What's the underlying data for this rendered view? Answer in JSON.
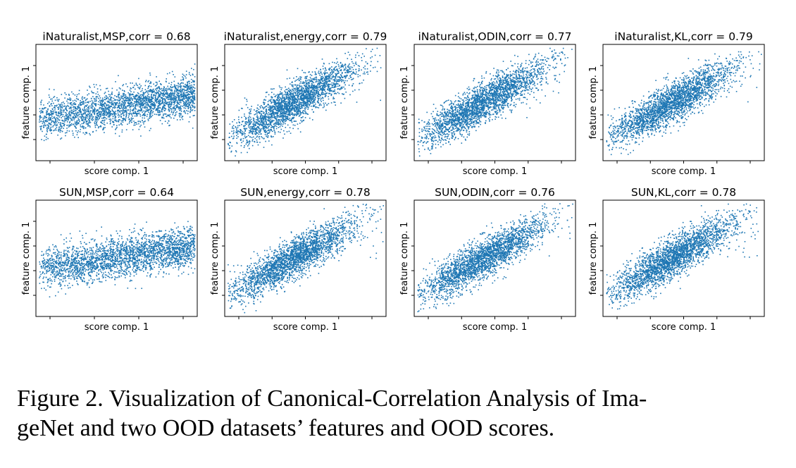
{
  "figure": {
    "caption": "Figure 2. Visualization of Canonical-Correlation Analysis of ImageNet and two OOD datasets’ features and OOD scores.",
    "caption_line1": "Figure 2. Visualization of Canonical-Correlation Analysis of Ima-",
    "caption_line2": "geNet and two OOD datasets’ features and OOD scores."
  },
  "colors": {
    "points": "#1f77b4",
    "axes": "#000000"
  },
  "chart_data": [
    {
      "type": "scatter",
      "title": "iNaturalist,MSP,corr = 0.68",
      "xlabel": "score comp. 1",
      "ylabel": "feature comp. 1",
      "dataset": "iNaturalist",
      "method": "MSP",
      "corr": 0.68,
      "yticks": 4,
      "xticks": 4,
      "shape": "msp"
    },
    {
      "type": "scatter",
      "title": "iNaturalist,energy,corr = 0.79",
      "xlabel": "score comp. 1",
      "ylabel": "feature comp. 1",
      "dataset": "iNaturalist",
      "method": "energy",
      "corr": 0.79,
      "yticks": 4,
      "xticks": 5,
      "shape": "diag"
    },
    {
      "type": "scatter",
      "title": "iNaturalist,ODIN,corr = 0.77",
      "xlabel": "score comp. 1",
      "ylabel": "feature comp. 1",
      "dataset": "iNaturalist",
      "method": "ODIN",
      "corr": 0.77,
      "yticks": 4,
      "xticks": 5,
      "shape": "diag"
    },
    {
      "type": "scatter",
      "title": "iNaturalist,KL,corr = 0.79",
      "xlabel": "score comp. 1",
      "ylabel": "feature comp. 1",
      "dataset": "iNaturalist",
      "method": "KL",
      "corr": 0.79,
      "yticks": 4,
      "xticks": 5,
      "shape": "diag"
    },
    {
      "type": "scatter",
      "title": "SUN,MSP,corr = 0.64",
      "xlabel": "score comp. 1",
      "ylabel": "feature comp. 1",
      "dataset": "SUN",
      "method": "MSP",
      "corr": 0.64,
      "yticks": 4,
      "xticks": 4,
      "shape": "msp"
    },
    {
      "type": "scatter",
      "title": "SUN,energy,corr = 0.78",
      "xlabel": "score comp. 1",
      "ylabel": "feature comp. 1",
      "dataset": "SUN",
      "method": "energy",
      "corr": 0.78,
      "yticks": 3,
      "xticks": 5,
      "shape": "diag"
    },
    {
      "type": "scatter",
      "title": "SUN,ODIN,corr = 0.76",
      "xlabel": "score comp. 1",
      "ylabel": "feature comp. 1",
      "dataset": "SUN",
      "method": "ODIN",
      "corr": 0.76,
      "yticks": 3,
      "xticks": 5,
      "shape": "diag"
    },
    {
      "type": "scatter",
      "title": "SUN,KL,corr = 0.78",
      "xlabel": "score comp. 1",
      "ylabel": "feature comp. 1",
      "dataset": "SUN",
      "method": "KL",
      "corr": 0.78,
      "yticks": 3,
      "xticks": 5,
      "shape": "diag"
    }
  ]
}
